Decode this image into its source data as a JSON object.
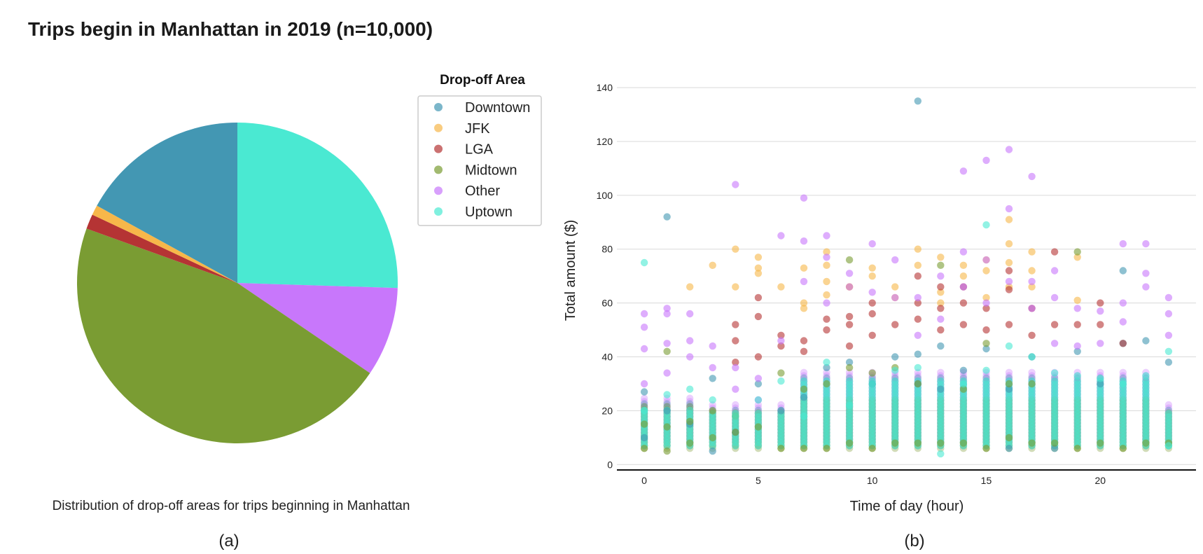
{
  "title": "Trips begin in Manhattan in 2019 (n=10,000)",
  "colors": {
    "Downtown": "#4397b3",
    "JFK": "#f7b74a",
    "LGA": "#b53434",
    "Midtown": "#7a9c33",
    "Other": "#c877fb",
    "Uptown": "#4ae9d2"
  },
  "chart_data": [
    {
      "type": "pie",
      "caption": "Distribution of drop-off areas for trips beginning in Manhattan",
      "panel_label": "(a)",
      "legend": {
        "title": "Drop-off Area",
        "placement": "right",
        "entries": [
          "Downtown",
          "JFK",
          "LGA",
          "Midtown",
          "Other",
          "Uptown"
        ]
      },
      "slices": [
        {
          "label": "Uptown",
          "value": 25.5
        },
        {
          "label": "Other",
          "value": 9.0
        },
        {
          "label": "Midtown",
          "value": 46.0
        },
        {
          "label": "LGA",
          "value": 1.5
        },
        {
          "label": "JFK",
          "value": 1.0
        },
        {
          "label": "Downtown",
          "value": 17.0
        }
      ],
      "start_angle_deg": 90,
      "direction": "clockwise"
    },
    {
      "type": "scatter",
      "panel_label": "(b)",
      "xlabel": "Time of day (hour)",
      "ylabel": "Total amount ($)",
      "xlim": [
        -1.2,
        24.2
      ],
      "ylim": [
        -2,
        146
      ],
      "xticks": [
        0,
        5,
        10,
        15,
        20
      ],
      "yticks": [
        0,
        20,
        40,
        60,
        80,
        100,
        120,
        140
      ],
      "grid": "horizontal",
      "series": [
        {
          "name": "Downtown",
          "x": [
            0,
            0,
            1,
            1,
            2,
            3,
            3,
            4,
            5,
            6,
            7,
            8,
            9,
            10,
            11,
            12,
            12,
            12,
            13,
            13,
            14,
            15,
            16,
            16,
            17,
            18,
            19,
            20,
            21,
            21,
            22,
            23
          ],
          "y": [
            10,
            27,
            20,
            92,
            15,
            5,
            32,
            12,
            30,
            20,
            25,
            36,
            38,
            30,
            40,
            41,
            30,
            135,
            44,
            28,
            35,
            43,
            6,
            28,
            40,
            6,
            42,
            30,
            72,
            45,
            46,
            38
          ]
        },
        {
          "name": "JFK",
          "x": [
            2,
            3,
            4,
            4,
            5,
            5,
            5,
            6,
            7,
            7,
            7,
            8,
            8,
            8,
            8,
            9,
            9,
            10,
            10,
            11,
            11,
            12,
            12,
            13,
            13,
            13,
            14,
            14,
            15,
            15,
            15,
            16,
            16,
            16,
            16,
            17,
            17,
            17,
            19,
            19
          ],
          "y": [
            66,
            74,
            66,
            80,
            73,
            77,
            71,
            66,
            73,
            60,
            58,
            74,
            79,
            68,
            63,
            66,
            66,
            73,
            70,
            66,
            62,
            80,
            74,
            77,
            64,
            60,
            74,
            70,
            76,
            72,
            62,
            91,
            82,
            75,
            66,
            79,
            72,
            66,
            61,
            77
          ]
        },
        {
          "name": "LGA",
          "x": [
            4,
            4,
            4,
            5,
            5,
            5,
            6,
            6,
            7,
            7,
            8,
            8,
            9,
            9,
            9,
            10,
            10,
            10,
            11,
            12,
            12,
            12,
            13,
            13,
            13,
            14,
            14,
            14,
            15,
            15,
            16,
            16,
            16,
            17,
            17,
            18,
            18,
            19,
            20,
            20,
            21
          ],
          "y": [
            52,
            46,
            38,
            62,
            55,
            40,
            48,
            44,
            46,
            42,
            54,
            50,
            55,
            52,
            44,
            60,
            56,
            48,
            52,
            70,
            60,
            54,
            66,
            58,
            50,
            66,
            60,
            52,
            58,
            50,
            72,
            65,
            52,
            58,
            48,
            79,
            52,
            52,
            60,
            52,
            45
          ]
        },
        {
          "name": "Midtown",
          "x": [
            0,
            0,
            1,
            1,
            1,
            2,
            2,
            3,
            3,
            4,
            4,
            5,
            6,
            6,
            7,
            7,
            8,
            8,
            9,
            9,
            9,
            10,
            10,
            11,
            11,
            12,
            12,
            13,
            13,
            14,
            14,
            15,
            15,
            16,
            16,
            17,
            17,
            18,
            19,
            19,
            20,
            21,
            22,
            23
          ],
          "y": [
            6,
            15,
            5,
            42,
            14,
            8,
            16,
            10,
            20,
            12,
            18,
            14,
            6,
            34,
            6,
            28,
            6,
            30,
            8,
            76,
            36,
            6,
            34,
            8,
            36,
            8,
            30,
            8,
            74,
            8,
            28,
            6,
            45,
            10,
            30,
            8,
            30,
            8,
            6,
            79,
            8,
            6,
            8,
            8
          ]
        },
        {
          "name": "Other",
          "x": [
            0,
            0,
            0,
            0,
            1,
            1,
            1,
            1,
            2,
            2,
            2,
            3,
            3,
            4,
            4,
            4,
            5,
            5,
            6,
            6,
            7,
            7,
            7,
            8,
            8,
            8,
            9,
            9,
            10,
            10,
            11,
            11,
            12,
            12,
            13,
            13,
            14,
            14,
            14,
            15,
            15,
            15,
            16,
            16,
            16,
            17,
            17,
            17,
            18,
            18,
            18,
            19,
            19,
            20,
            20,
            21,
            21,
            21,
            22,
            22,
            22,
            23,
            23,
            23
          ],
          "y": [
            56,
            51,
            43,
            30,
            58,
            56,
            45,
            34,
            56,
            46,
            40,
            44,
            36,
            104,
            36,
            28,
            32,
            24,
            85,
            46,
            99,
            83,
            68,
            85,
            77,
            60,
            71,
            66,
            82,
            64,
            76,
            62,
            62,
            48,
            70,
            54,
            109,
            79,
            66,
            113,
            76,
            60,
            117,
            95,
            68,
            107,
            68,
            58,
            72,
            62,
            45,
            58,
            44,
            57,
            45,
            82,
            60,
            53,
            82,
            71,
            66,
            62,
            56,
            48
          ]
        },
        {
          "name": "Uptown",
          "x": [
            0,
            0,
            1,
            2,
            3,
            4,
            5,
            6,
            7,
            8,
            9,
            10,
            11,
            12,
            13,
            14,
            15,
            15,
            16,
            17,
            18,
            19,
            20,
            21,
            22,
            23,
            23
          ],
          "y": [
            75,
            20,
            26,
            28,
            24,
            18,
            24,
            31,
            18,
            38,
            22,
            30,
            35,
            36,
            4,
            30,
            89,
            35,
            44,
            40,
            34,
            33,
            32,
            30,
            33,
            42,
            7
          ]
        }
      ]
    }
  ]
}
